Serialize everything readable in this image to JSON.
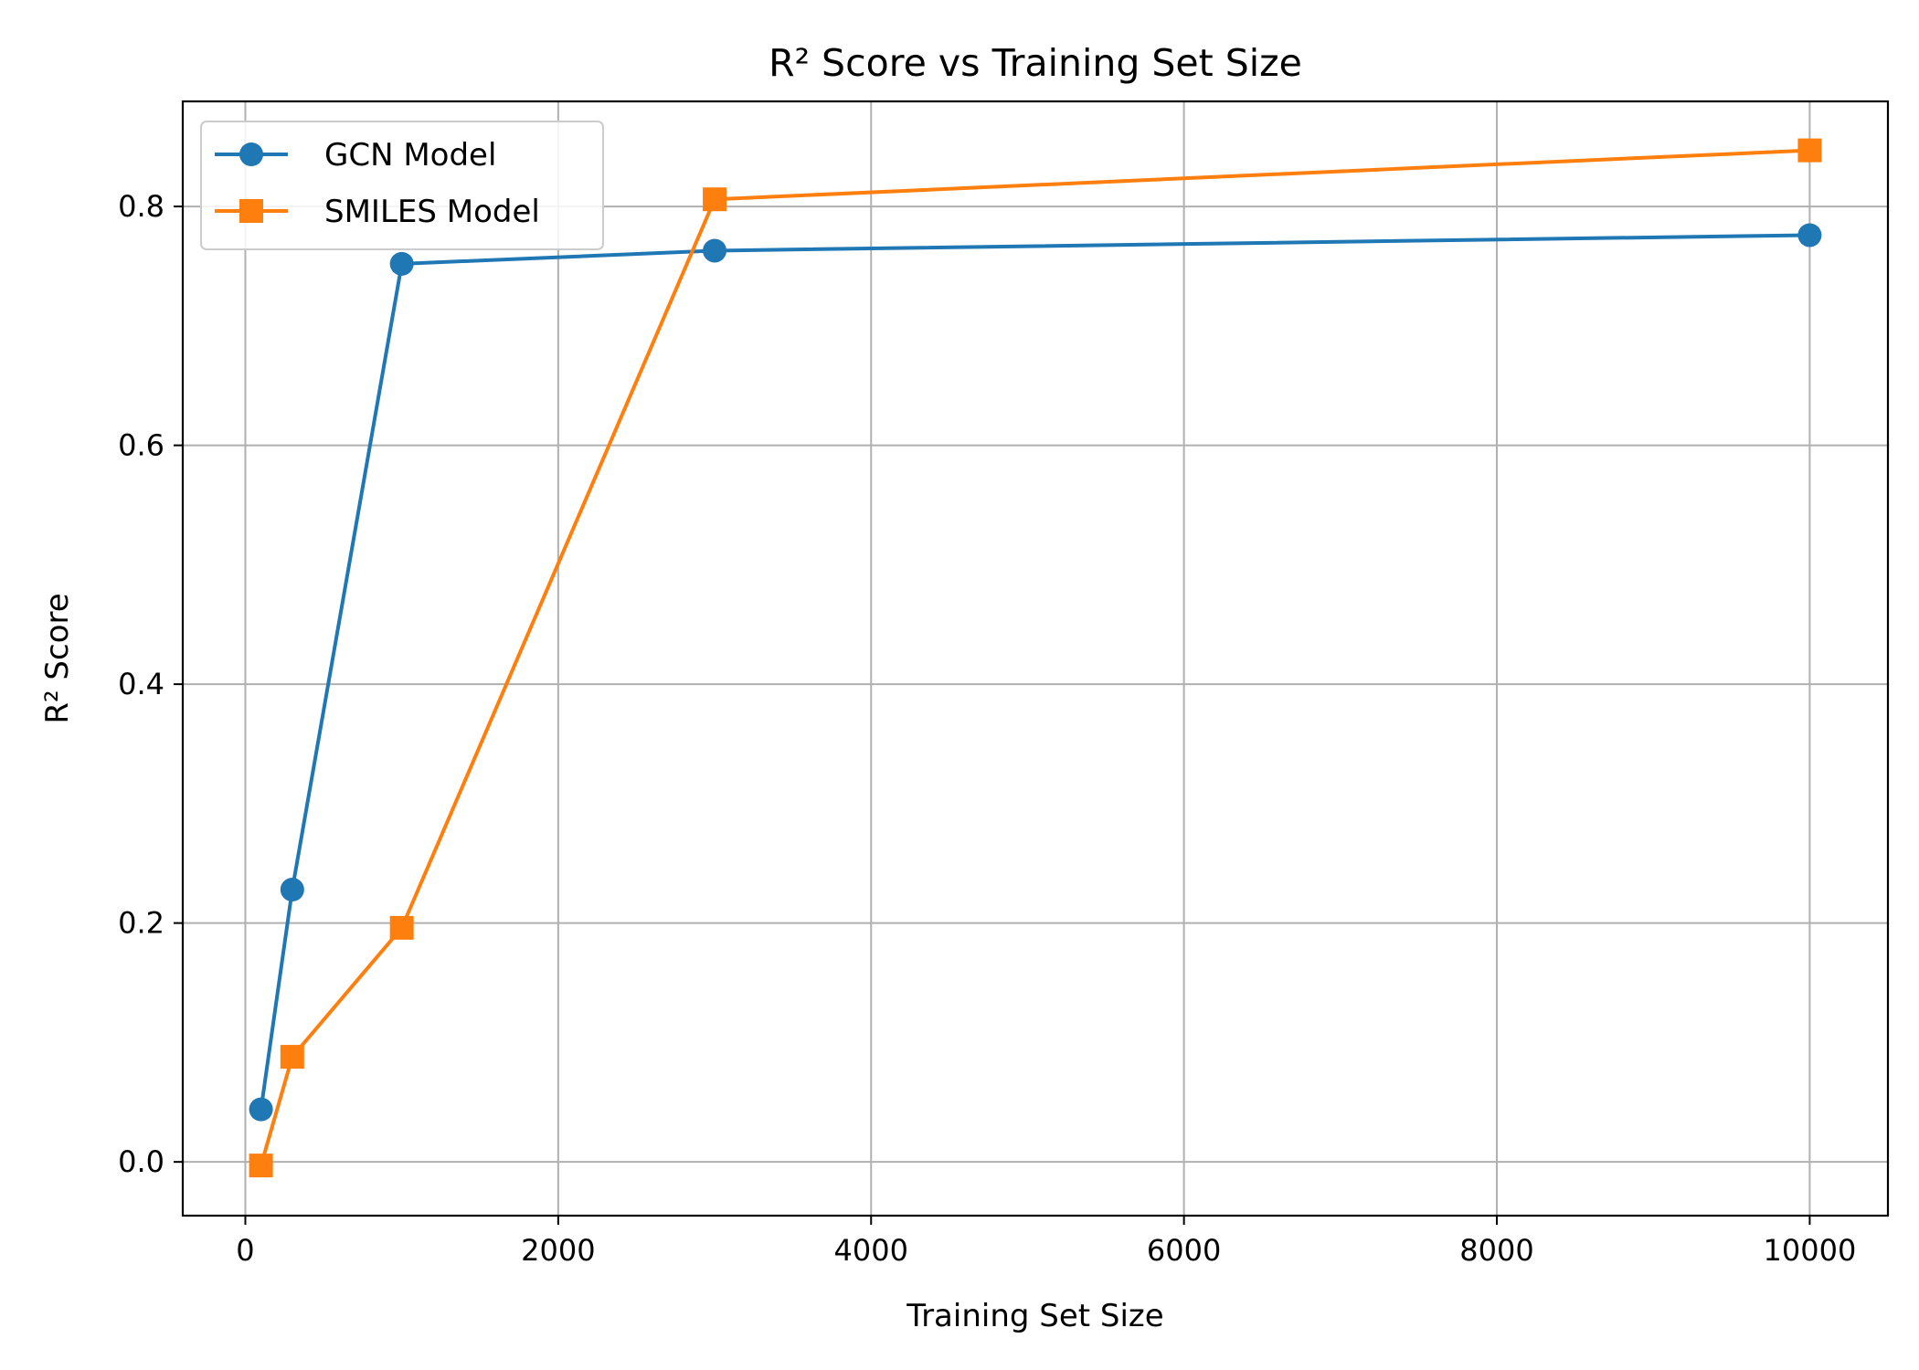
{
  "chart_data": {
    "type": "line",
    "title": "R² Score vs Training Set Size",
    "xlabel": "Training Set Size",
    "ylabel": "R² Score",
    "xlim": [
      -400,
      10500
    ],
    "ylim": [
      -0.045,
      0.888
    ],
    "xticks": [
      0,
      2000,
      4000,
      6000,
      8000,
      10000
    ],
    "yticks": [
      0.0,
      0.2,
      0.4,
      0.6,
      0.8
    ],
    "xtick_labels": [
      "0",
      "2000",
      "4000",
      "6000",
      "8000",
      "10000"
    ],
    "ytick_labels": [
      "0.0",
      "0.2",
      "0.4",
      "0.6",
      "0.8"
    ],
    "grid": true,
    "legend_position": "top-left",
    "series": [
      {
        "name": "GCN Model",
        "marker": "circle",
        "color": "#1f77b4",
        "x": [
          100,
          300,
          1000,
          3000,
          10000
        ],
        "y": [
          0.044,
          0.228,
          0.752,
          0.763,
          0.776
        ]
      },
      {
        "name": "SMILES Model",
        "marker": "square",
        "color": "#ff7f0e",
        "x": [
          100,
          300,
          1000,
          3000,
          10000
        ],
        "y": [
          -0.003,
          0.088,
          0.196,
          0.806,
          0.847
        ]
      }
    ]
  }
}
